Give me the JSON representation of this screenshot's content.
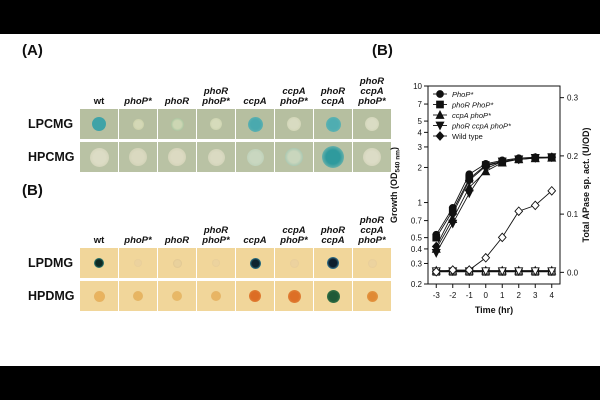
{
  "panel_a": {
    "letter": "(A)",
    "columns": [
      {
        "lines": [
          "wt"
        ],
        "italic": false
      },
      {
        "lines": [
          "phoP*"
        ],
        "italic": true
      },
      {
        "lines": [
          "phoR"
        ],
        "italic": true
      },
      {
        "lines": [
          "phoR",
          "phoP*"
        ],
        "italic": true
      },
      {
        "lines": [
          "ccpA"
        ],
        "italic": true
      },
      {
        "lines": [
          "ccpA",
          "phoP*"
        ],
        "italic": true
      },
      {
        "lines": [
          "phoR",
          "ccpA"
        ],
        "italic": true
      },
      {
        "lines": [
          "phoR",
          "ccpA",
          "phoP*"
        ],
        "italic": true
      }
    ],
    "rows": [
      {
        "label": "LPCMG",
        "bg": "#b6bfa0",
        "colonies": [
          {
            "color": "#3fa3a7",
            "ring": "#3fa3a7",
            "size": 0.45
          },
          {
            "color": "#d4d8b6",
            "ring": "#c9cfa6",
            "size": 0.38
          },
          {
            "color": "#ccd6b3",
            "ring": "#9fbf99",
            "size": 0.42
          },
          {
            "color": "#d6dbbb",
            "ring": "#cbd2ad",
            "size": 0.4
          },
          {
            "color": "#4aa9ae",
            "ring": "#63b3b0",
            "size": 0.5
          },
          {
            "color": "#d8dbc1",
            "ring": "#d0d4b4",
            "size": 0.45
          },
          {
            "color": "#4fadb1",
            "ring": "#62b4b1",
            "size": 0.5
          },
          {
            "color": "#dadcc4",
            "ring": "#d2d5b8",
            "size": 0.48
          }
        ]
      },
      {
        "label": "HPCMG",
        "bg": "#b9c2a4",
        "colonies": [
          {
            "color": "#dcdcc5",
            "ring": "#d3d4b9",
            "size": 0.62
          },
          {
            "color": "#dad9c0",
            "ring": "#d0d1b5",
            "size": 0.6
          },
          {
            "color": "#dcdac2",
            "ring": "#d2d2b6",
            "size": 0.6
          },
          {
            "color": "#dadac2",
            "ring": "#d1d2b7",
            "size": 0.58
          },
          {
            "color": "#c9d7c0",
            "ring": "#bcd0b8",
            "size": 0.55
          },
          {
            "color": "#c9d6bd",
            "ring": "#9fc3ad",
            "size": 0.6
          },
          {
            "color": "#2f9a9d",
            "ring": "#7ab8ae",
            "size": 0.72
          },
          {
            "color": "#dcdcc6",
            "ring": "#d2d3b9",
            "size": 0.6
          }
        ]
      }
    ]
  },
  "panel_b_plates": {
    "letter": "(B)",
    "columns": [
      {
        "lines": [
          "wt"
        ],
        "italic": false
      },
      {
        "lines": [
          "phoP*"
        ],
        "italic": true
      },
      {
        "lines": [
          "phoR"
        ],
        "italic": true
      },
      {
        "lines": [
          "phoR",
          "phoP*"
        ],
        "italic": true
      },
      {
        "lines": [
          "ccpA"
        ],
        "italic": true
      },
      {
        "lines": [
          "ccpA",
          "phoP*"
        ],
        "italic": true
      },
      {
        "lines": [
          "phoR",
          "ccpA"
        ],
        "italic": true
      },
      {
        "lines": [
          "phoR",
          "ccpA",
          "phoP*"
        ],
        "italic": true
      }
    ],
    "rows": [
      {
        "label": "LPDMG",
        "bg": "#f1d69a",
        "colonies": [
          {
            "color": "#0d2a24",
            "ring": "#3fa49b",
            "size": 0.32
          },
          {
            "color": "#ecd29e",
            "ring": "#e6cc96",
            "size": 0.28
          },
          {
            "color": "#e9d19c",
            "ring": "#ddc38e",
            "size": 0.3
          },
          {
            "color": "#ecd39e",
            "ring": "#e5cb96",
            "size": 0.28
          },
          {
            "color": "#0d2430",
            "ring": "#3f9fb5",
            "size": 0.36
          },
          {
            "color": "#ecd29f",
            "ring": "#e5cb98",
            "size": 0.3
          },
          {
            "color": "#0e1f2d",
            "ring": "#4a9fbf",
            "size": 0.4
          },
          {
            "color": "#ecd39f",
            "ring": "#e6cb97",
            "size": 0.3
          }
        ]
      },
      {
        "label": "HPDMG",
        "bg": "#f1d69a",
        "colonies": [
          {
            "color": "#e9b35e",
            "ring": "#e4b364",
            "size": 0.36
          },
          {
            "color": "#e7b562",
            "ring": "#e3b466",
            "size": 0.34
          },
          {
            "color": "#e8b866",
            "ring": "#e4b86b",
            "size": 0.34
          },
          {
            "color": "#e8b564",
            "ring": "#e4b468",
            "size": 0.34
          },
          {
            "color": "#dc6d24",
            "ring": "#e08439",
            "size": 0.4
          },
          {
            "color": "#dd6f26",
            "ring": "#e0863c",
            "size": 0.42
          },
          {
            "color": "#1f5a37",
            "ring": "#3d7a4a",
            "size": 0.44
          },
          {
            "color": "#e08a34",
            "ring": "#e39a48",
            "size": 0.38
          }
        ]
      }
    ]
  },
  "chart_data": {
    "type": "line",
    "panel_letter": "(B)",
    "xlabel": "Time (hr)",
    "ylabel_left": "Growth (OD",
    "ylabel_left_subscript": "540 nm",
    "ylabel_left_close": ")",
    "ylabel_right": "Total APase sp. act. (U/OD)",
    "x_ticks": [
      "-3",
      "-2",
      "-1",
      "0",
      "1",
      "2",
      "3",
      "4"
    ],
    "x_range": [
      -3.5,
      4.5
    ],
    "y_left_scale": "log",
    "y_left_range": [
      0.2,
      10
    ],
    "y_left_ticks": [
      "0.2",
      "0.3",
      "0.4",
      "0.5",
      "0.7",
      "1",
      "2",
      "3",
      "4",
      "5",
      "7",
      "10"
    ],
    "y_right_range": [
      -0.02,
      0.32
    ],
    "y_right_ticks": [
      "0.0",
      "0.1",
      "0.2",
      "0.3"
    ],
    "legend_position": "top-left",
    "growth_series": [
      {
        "name": "PhoP*",
        "marker": "circle",
        "x": [
          -3,
          -2,
          -1,
          0,
          1,
          2,
          3,
          4
        ],
        "y": [
          0.53,
          0.9,
          1.75,
          2.15,
          2.3,
          2.4,
          2.45,
          2.45
        ]
      },
      {
        "name": "phoR PhoP*",
        "marker": "square",
        "x": [
          -3,
          -2,
          -1,
          0,
          1,
          2,
          3,
          4
        ],
        "y": [
          0.5,
          0.85,
          1.6,
          2.1,
          2.25,
          2.35,
          2.4,
          2.45
        ]
      },
      {
        "name": "ccpA phoP*",
        "marker": "triangle-up",
        "x": [
          -3,
          -2,
          -1,
          0,
          1,
          2,
          3,
          4
        ],
        "y": [
          0.4,
          0.72,
          1.35,
          1.85,
          2.2,
          2.35,
          2.4,
          2.42
        ]
      },
      {
        "name": "phoR ccpA phoP*",
        "marker": "triangle-down",
        "x": [
          -3,
          -2,
          -1,
          0,
          1,
          2,
          3,
          4
        ],
        "y": [
          0.37,
          0.66,
          1.2,
          1.95,
          2.25,
          2.35,
          2.42,
          2.45
        ]
      },
      {
        "name": "Wild type",
        "marker": "diamond",
        "x": [
          -3,
          -2,
          -1,
          0,
          1,
          2,
          3,
          4
        ],
        "y": [
          0.42,
          0.8,
          1.55,
          2.05,
          2.25,
          2.35,
          2.42,
          2.45
        ]
      }
    ],
    "apase_series": [
      {
        "marker": "circle",
        "x": [
          -3,
          -2,
          -1,
          0,
          1,
          2,
          3,
          4
        ],
        "y": [
          0.002,
          0.002,
          0.002,
          0.002,
          0.002,
          0.002,
          0.002,
          0.002
        ]
      },
      {
        "marker": "square",
        "x": [
          -3,
          -2,
          -1,
          0,
          1,
          2,
          3,
          4
        ],
        "y": [
          0.001,
          0.001,
          0.001,
          0.001,
          0.001,
          0.001,
          0.001,
          0.001
        ]
      },
      {
        "marker": "triangle-up",
        "x": [
          -3,
          -2,
          -1,
          0,
          1,
          2,
          3,
          4
        ],
        "y": [
          0.003,
          0.003,
          0.003,
          0.003,
          0.003,
          0.003,
          0.003,
          0.003
        ]
      },
      {
        "marker": "triangle-down",
        "x": [
          -3,
          -2,
          -1,
          0,
          1,
          2,
          3,
          4
        ],
        "y": [
          0.002,
          0.002,
          0.002,
          0.002,
          0.002,
          0.002,
          0.002,
          0.002
        ]
      },
      {
        "marker": "diamond",
        "x": [
          -3,
          -2,
          -1,
          0,
          1,
          2,
          3,
          4
        ],
        "y": [
          0.001,
          0.004,
          0.004,
          0.025,
          0.06,
          0.105,
          0.115,
          0.14
        ]
      }
    ]
  }
}
